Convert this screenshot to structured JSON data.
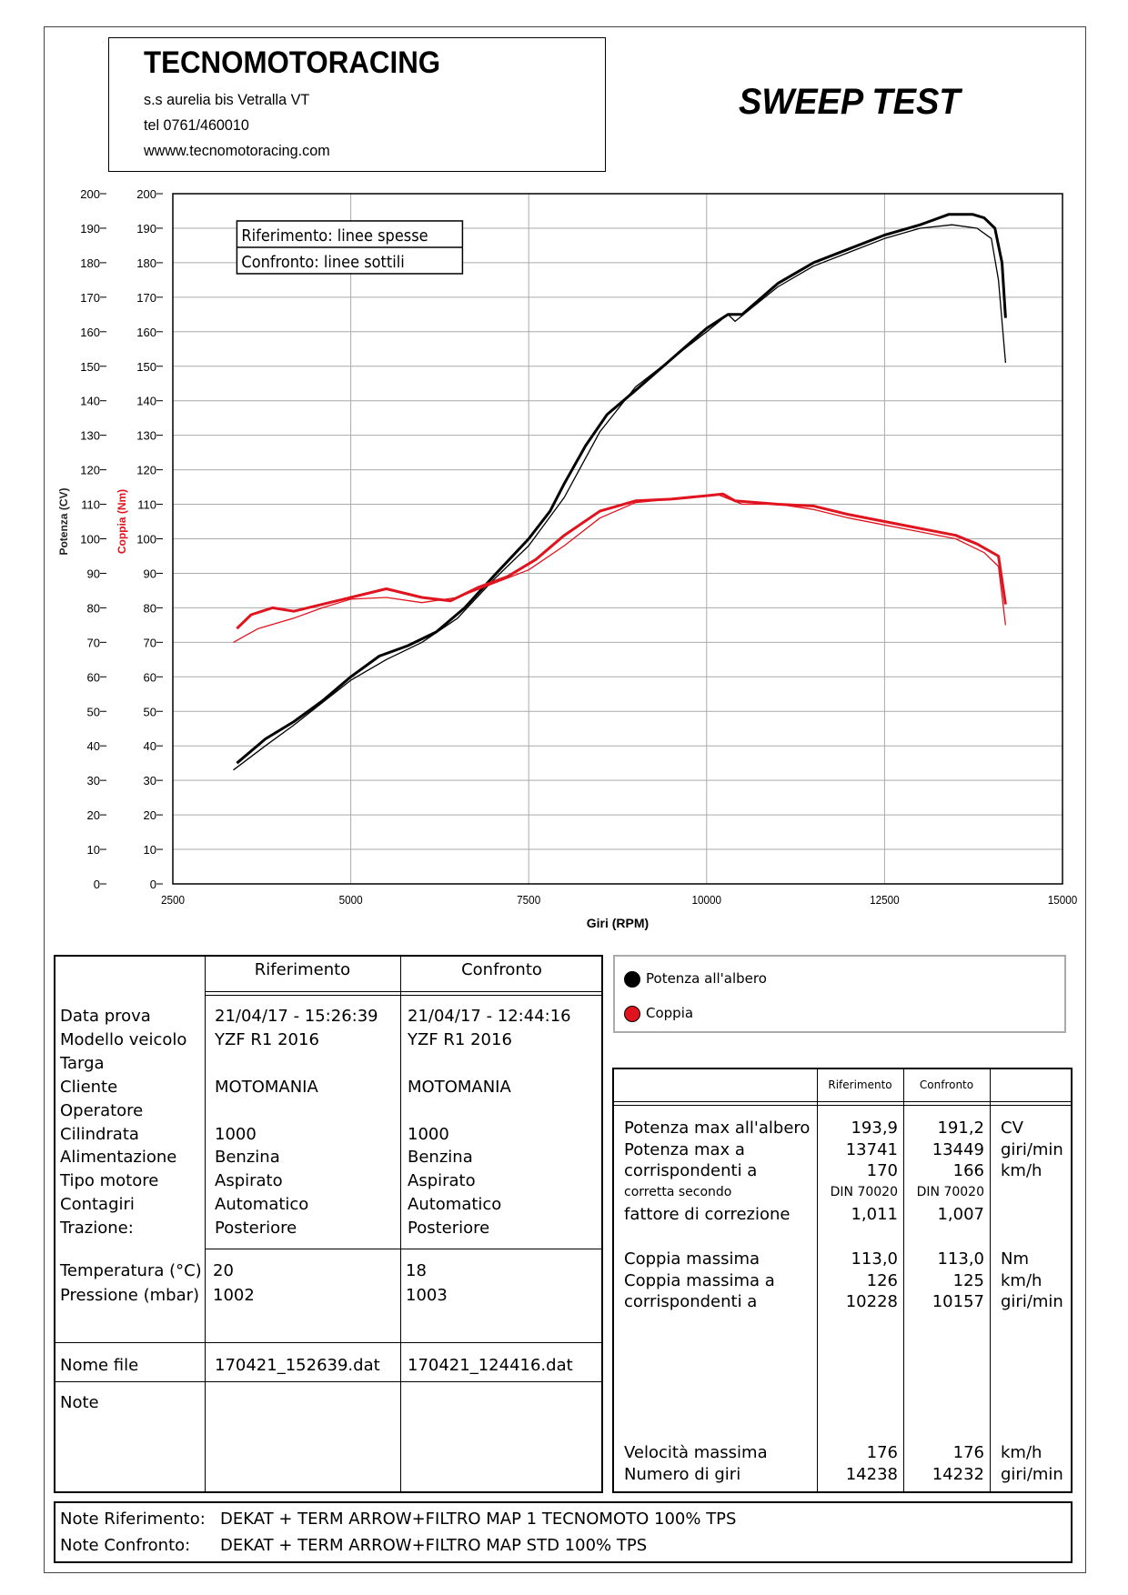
{
  "header": {
    "brand": "TECNOMOTORACING",
    "address": "s.s aurelia bis  Vetralla  VT",
    "phone": "tel 0761/460010",
    "website": "wwww.tecnomotoracing.com",
    "title": "SWEEP TEST"
  },
  "chart_data": {
    "type": "line",
    "xlabel": "Giri (RPM)",
    "ylabel_left": "Potenza (CV)",
    "ylabel_right": "Coppia (Nm)",
    "xlim": [
      2500,
      15000
    ],
    "ylim": [
      0,
      200
    ],
    "x_ticks": [
      2500,
      5000,
      7500,
      10000,
      12500,
      15000
    ],
    "y_ticks": [
      0,
      10,
      20,
      30,
      40,
      50,
      60,
      70,
      80,
      90,
      100,
      110,
      120,
      130,
      140,
      150,
      160,
      170,
      180,
      190,
      200
    ],
    "grid": true,
    "legend_box": [
      "Riferimento: linee spesse",
      "Confronto: linee sottili"
    ],
    "colors": {
      "power": "#000000",
      "torque": "#e0141e"
    },
    "series": [
      {
        "name": "Potenza all'albero",
        "run": "Riferimento",
        "style": "thick",
        "color": "#000000",
        "x": [
          3400,
          3800,
          4200,
          4600,
          5000,
          5400,
          5800,
          6200,
          6600,
          7000,
          7500,
          7800,
          8000,
          8300,
          8600,
          9000,
          9500,
          10000,
          10300,
          10500,
          11000,
          11500,
          12000,
          12500,
          13000,
          13400,
          13741,
          13900,
          14050,
          14150,
          14200
        ],
        "y": [
          35,
          42,
          47,
          53,
          60,
          66,
          69,
          73,
          80,
          89,
          100,
          108,
          116,
          127,
          136,
          143,
          152,
          161,
          165,
          165,
          174,
          180,
          184,
          188,
          191,
          194,
          194,
          193,
          190,
          180,
          164
        ]
      },
      {
        "name": "Potenza all'albero",
        "run": "Confronto",
        "style": "thin",
        "color": "#000000",
        "x": [
          3350,
          3800,
          4200,
          5000,
          5500,
          6000,
          6500,
          7000,
          7500,
          8000,
          8500,
          9000,
          9500,
          10000,
          10300,
          10400,
          10700,
          11000,
          11500,
          12000,
          12500,
          13000,
          13449,
          13800,
          14000,
          14100,
          14200
        ],
        "y": [
          33,
          40,
          46,
          59,
          65,
          70,
          77,
          88,
          98,
          112,
          131,
          144,
          152,
          160,
          165,
          163,
          168,
          173,
          179,
          183,
          187,
          190,
          191,
          190,
          187,
          175,
          151
        ]
      },
      {
        "name": "Coppia",
        "run": "Riferimento",
        "style": "thick",
        "color": "#e0141e",
        "x": [
          3400,
          3600,
          3900,
          4200,
          4600,
          5000,
          5500,
          6000,
          6400,
          6800,
          7200,
          7600,
          8000,
          8500,
          9000,
          9500,
          10000,
          10228,
          10400,
          11000,
          11500,
          12000,
          12500,
          13000,
          13500,
          13800,
          14100,
          14200
        ],
        "y": [
          74,
          78,
          80,
          79,
          81,
          83,
          85.5,
          83,
          82,
          86,
          89,
          94,
          101,
          108,
          111,
          111.5,
          112.5,
          113,
          111,
          110,
          109.5,
          107,
          105,
          103,
          101,
          98.5,
          95,
          81
        ]
      },
      {
        "name": "Coppia",
        "run": "Confronto",
        "style": "thin",
        "color": "#e0141e",
        "x": [
          3350,
          3700,
          4200,
          4600,
          5000,
          5500,
          6000,
          6500,
          7000,
          7500,
          8000,
          8500,
          9000,
          9500,
          10157,
          10500,
          11000,
          11500,
          12000,
          12500,
          13000,
          13500,
          13900,
          14100,
          14200
        ],
        "y": [
          70,
          74,
          77,
          80,
          82.5,
          83,
          81.5,
          83,
          87,
          91,
          98,
          106,
          110.5,
          111.5,
          112.8,
          110,
          110,
          108.5,
          106,
          104,
          102,
          100,
          96,
          92,
          75
        ]
      }
    ]
  },
  "legend": {
    "power": "Potenza all'albero",
    "torque": "Coppia"
  },
  "info_table": {
    "col_ref": "Riferimento",
    "col_conf": "Confronto",
    "labels": [
      "Data prova",
      "Modello veicolo",
      "Targa",
      "Cliente",
      "Operatore",
      "Cilindrata",
      "Alimentazione",
      "Tipo motore",
      "Contagiri",
      "Trazione:"
    ],
    "ref": [
      "21/04/17 - 15:26:39",
      "YZF R1 2016",
      "",
      "MOTOMANIA",
      "",
      "1000",
      "Benzina",
      "Aspirato",
      "Automatico",
      "Posteriore"
    ],
    "conf": [
      "21/04/17 - 12:44:16",
      "YZF R1 2016",
      "",
      "MOTOMANIA",
      "",
      "1000",
      "Benzina",
      "Aspirato",
      "Automatico",
      "Posteriore"
    ],
    "env_labels": [
      "Temperatura (°C)",
      "Pressione (mbar)"
    ],
    "env_ref": [
      "20",
      "1002"
    ],
    "env_conf": [
      "18",
      "1003"
    ],
    "file_label": "Nome file",
    "file_ref": "170421_152639.dat",
    "file_conf": "170421_124416.dat",
    "note_label": "Note"
  },
  "results_table": {
    "col_ref": "Riferimento",
    "col_conf": "Confronto",
    "group1": {
      "labels": [
        "Potenza max all'albero",
        "Potenza max a",
        "corrispondenti a",
        "corretta secondo",
        "fattore di correzione"
      ],
      "ref": [
        "193,9",
        "13741",
        "170",
        "DIN 70020",
        "1,011"
      ],
      "conf": [
        "191,2",
        "13449",
        "166",
        "DIN 70020",
        "1,007"
      ],
      "units": [
        "CV",
        "giri/min",
        "km/h",
        "",
        ""
      ]
    },
    "group2": {
      "labels": [
        "Coppia massima",
        "Coppia massima a",
        "corrispondenti a"
      ],
      "ref": [
        "113,0",
        "126",
        "10228"
      ],
      "conf": [
        "113,0",
        "125",
        "10157"
      ],
      "units": [
        "Nm",
        "km/h",
        "giri/min"
      ]
    },
    "group3": {
      "labels": [
        "Velocità massima",
        "Numero di giri"
      ],
      "ref": [
        "176",
        "14238"
      ],
      "conf": [
        "176",
        "14232"
      ],
      "units": [
        "km/h",
        "giri/min"
      ]
    }
  },
  "notes": {
    "ref_label": "Note Riferimento:",
    "ref_value": "DEKAT + TERM ARROW+FILTRO MAP 1 TECNOMOTO 100% TPS",
    "conf_label": "Note Confronto:",
    "conf_value": "DEKAT + TERM ARROW+FILTRO MAP STD 100% TPS"
  }
}
